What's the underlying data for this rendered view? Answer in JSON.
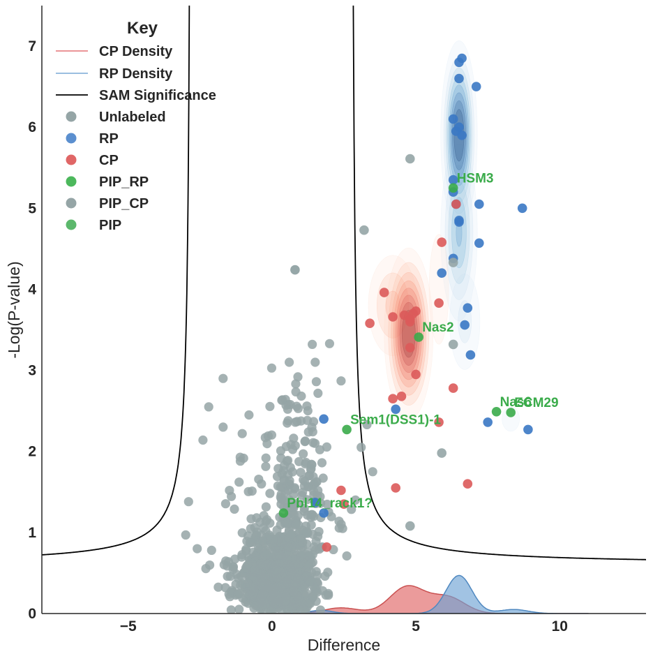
{
  "chart_data": {
    "type": "scatter",
    "xlabel": "Difference",
    "ylabel": "-Log(P-value)",
    "xlim": [
      -8,
      13
    ],
    "ylim": [
      0,
      7.5
    ],
    "xticks": [
      -5,
      0,
      5,
      10
    ],
    "xtick_labels": [
      "−5",
      "0",
      "5",
      "10"
    ],
    "yticks": [
      0,
      1,
      2,
      3,
      4,
      5,
      6,
      7
    ],
    "ytick_labels": [
      "0",
      "1",
      "2",
      "3",
      "4",
      "5",
      "6",
      "7"
    ],
    "grid": false,
    "legend": {
      "title": "Key",
      "position": "top-left",
      "entries": [
        {
          "label": "CP Density",
          "kind": "line",
          "color": "#e8868a"
        },
        {
          "label": "RP Density",
          "kind": "line",
          "color": "#8cb4dc"
        },
        {
          "label": "SAM Significance",
          "kind": "line",
          "color": "#000000"
        },
        {
          "label": "Unlabeled",
          "kind": "marker",
          "color": "#95a5a6"
        },
        {
          "label": "RP",
          "kind": "marker",
          "color": "#5b8fcf"
        },
        {
          "label": "CP",
          "kind": "marker",
          "color": "#e06666"
        },
        {
          "label": "PIP_RP",
          "kind": "marker",
          "color": "#4cb85c"
        },
        {
          "label": "PIP_CP",
          "kind": "marker",
          "color": "#95a5a6"
        },
        {
          "label": "PIP",
          "kind": "marker",
          "color": "#5cb86c"
        }
      ]
    },
    "colors": {
      "unlabeled": "#95a5a6",
      "rp": "#3a78c4",
      "cp": "#dc5a5a",
      "pip": "#3aab4a",
      "sam": "#000000",
      "rp_density": "#6fa3d4",
      "cp_density": "#e57373"
    },
    "series": [
      {
        "name": "RP",
        "points": [
          [
            6.5,
            6.8
          ],
          [
            6.6,
            6.85
          ],
          [
            6.5,
            6.6
          ],
          [
            7.1,
            6.5
          ],
          [
            6.3,
            6.1
          ],
          [
            6.5,
            6.0
          ],
          [
            6.4,
            5.95
          ],
          [
            6.6,
            5.9
          ],
          [
            6.3,
            5.35
          ],
          [
            6.3,
            5.2
          ],
          [
            6.4,
            5.05
          ],
          [
            7.2,
            5.05
          ],
          [
            8.7,
            5.0
          ],
          [
            6.5,
            4.85
          ],
          [
            6.5,
            4.83
          ],
          [
            7.2,
            4.57
          ],
          [
            6.3,
            4.38
          ],
          [
            5.9,
            4.2
          ],
          [
            6.8,
            3.77
          ],
          [
            6.7,
            3.56
          ],
          [
            6.9,
            3.19
          ],
          [
            4.3,
            2.52
          ],
          [
            1.8,
            2.4
          ],
          [
            7.5,
            2.36
          ],
          [
            8.9,
            2.27
          ],
          [
            1.5,
            1.37
          ],
          [
            1.8,
            1.24
          ]
        ]
      },
      {
        "name": "CP",
        "points": [
          [
            6.4,
            5.05
          ],
          [
            5.9,
            4.58
          ],
          [
            3.9,
            3.96
          ],
          [
            5.8,
            3.83
          ],
          [
            4.2,
            3.66
          ],
          [
            4.6,
            3.68
          ],
          [
            5.0,
            3.73
          ],
          [
            4.9,
            3.7
          ],
          [
            4.8,
            3.63
          ],
          [
            4.8,
            3.6
          ],
          [
            3.4,
            3.58
          ],
          [
            4.8,
            3.28
          ],
          [
            5.0,
            2.95
          ],
          [
            6.3,
            2.78
          ],
          [
            4.5,
            2.68
          ],
          [
            4.2,
            2.65
          ],
          [
            5.8,
            2.36
          ],
          [
            2.4,
            1.52
          ],
          [
            4.3,
            1.55
          ],
          [
            6.8,
            1.6
          ],
          [
            2.5,
            1.35
          ],
          [
            1.9,
            0.82
          ]
        ]
      },
      {
        "name": "PIP_RP",
        "points": [
          [
            6.3,
            5.25
          ],
          [
            5.1,
            3.41
          ],
          [
            7.8,
            2.49
          ],
          [
            8.3,
            2.48
          ],
          [
            2.6,
            2.27
          ],
          [
            0.4,
            1.24
          ]
        ]
      },
      {
        "name": "PIP_CP",
        "points": [
          [
            4.8,
            5.61
          ],
          [
            3.2,
            4.73
          ],
          [
            0.8,
            4.24
          ],
          [
            6.3,
            4.33
          ],
          [
            6.3,
            3.32
          ],
          [
            5.9,
            1.98
          ],
          [
            4.8,
            1.08
          ]
        ]
      }
    ],
    "annotations": [
      {
        "text": "HSM3",
        "x": 6.3,
        "y": 5.25
      },
      {
        "text": "Nas2",
        "x": 5.1,
        "y": 3.41
      },
      {
        "text": "Nas6",
        "x": 7.8,
        "y": 2.49
      },
      {
        "text": "ECM29",
        "x": 8.3,
        "y": 2.48
      },
      {
        "text": "Sem1(DSS1)-1",
        "x": 2.6,
        "y": 2.27
      },
      {
        "text": "Pbl14_rack1?",
        "x": 0.4,
        "y": 1.24
      }
    ],
    "sam_significance": {
      "center": 0.45,
      "asymptote_left": -2.8,
      "asymptote_right": 2.75
    },
    "kde_2d": {
      "rp": [
        {
          "cx": 6.5,
          "cy": 5.9,
          "sx": 0.3,
          "sy": 0.55,
          "w": 1.0
        },
        {
          "cx": 6.5,
          "cy": 4.7,
          "sx": 0.35,
          "sy": 0.6,
          "w": 0.55
        },
        {
          "cx": 6.7,
          "cy": 3.6,
          "sx": 0.4,
          "sy": 0.45,
          "w": 0.25
        },
        {
          "cx": 8.3,
          "cy": 2.4,
          "sx": 0.6,
          "sy": 0.3,
          "w": 0.12
        },
        {
          "cx": 8.7,
          "cy": 5.0,
          "sx": 0.35,
          "sy": 0.35,
          "w": 0.06
        },
        {
          "cx": 1.6,
          "cy": 1.6,
          "sx": 0.25,
          "sy": 0.8,
          "w": 0.07
        },
        {
          "cx": 4.3,
          "cy": 2.5,
          "sx": 0.3,
          "sy": 0.3,
          "w": 0.05
        }
      ],
      "cp": [
        {
          "cx": 4.75,
          "cy": 3.45,
          "sx": 0.4,
          "sy": 0.5,
          "w": 1.0
        },
        {
          "cx": 4.2,
          "cy": 3.8,
          "sx": 0.55,
          "sy": 0.4,
          "w": 0.35
        },
        {
          "cx": 5.8,
          "cy": 4.0,
          "sx": 0.3,
          "sy": 0.6,
          "w": 0.2
        },
        {
          "cx": 4.5,
          "cy": 2.3,
          "sx": 0.7,
          "sy": 0.8,
          "w": 0.1
        },
        {
          "cx": 2.3,
          "cy": 1.2,
          "sx": 0.35,
          "sy": 0.6,
          "w": 0.08
        },
        {
          "cx": 6.3,
          "cy": 4.9,
          "sx": 0.25,
          "sy": 0.3,
          "w": 0.07
        },
        {
          "cx": 6.7,
          "cy": 1.7,
          "sx": 0.35,
          "sy": 0.4,
          "w": 0.05
        }
      ]
    },
    "kde_1d": {
      "cp": [
        {
          "mu": 4.7,
          "s": 0.6,
          "h": 0.33
        },
        {
          "mu": 6.1,
          "s": 0.6,
          "h": 0.2
        },
        {
          "mu": 2.4,
          "s": 0.6,
          "h": 0.07
        }
      ],
      "rp": [
        {
          "mu": 6.5,
          "s": 0.45,
          "h": 0.47
        },
        {
          "mu": 8.4,
          "s": 0.5,
          "h": 0.05
        },
        {
          "mu": 1.7,
          "s": 0.4,
          "h": 0.04
        }
      ]
    }
  }
}
